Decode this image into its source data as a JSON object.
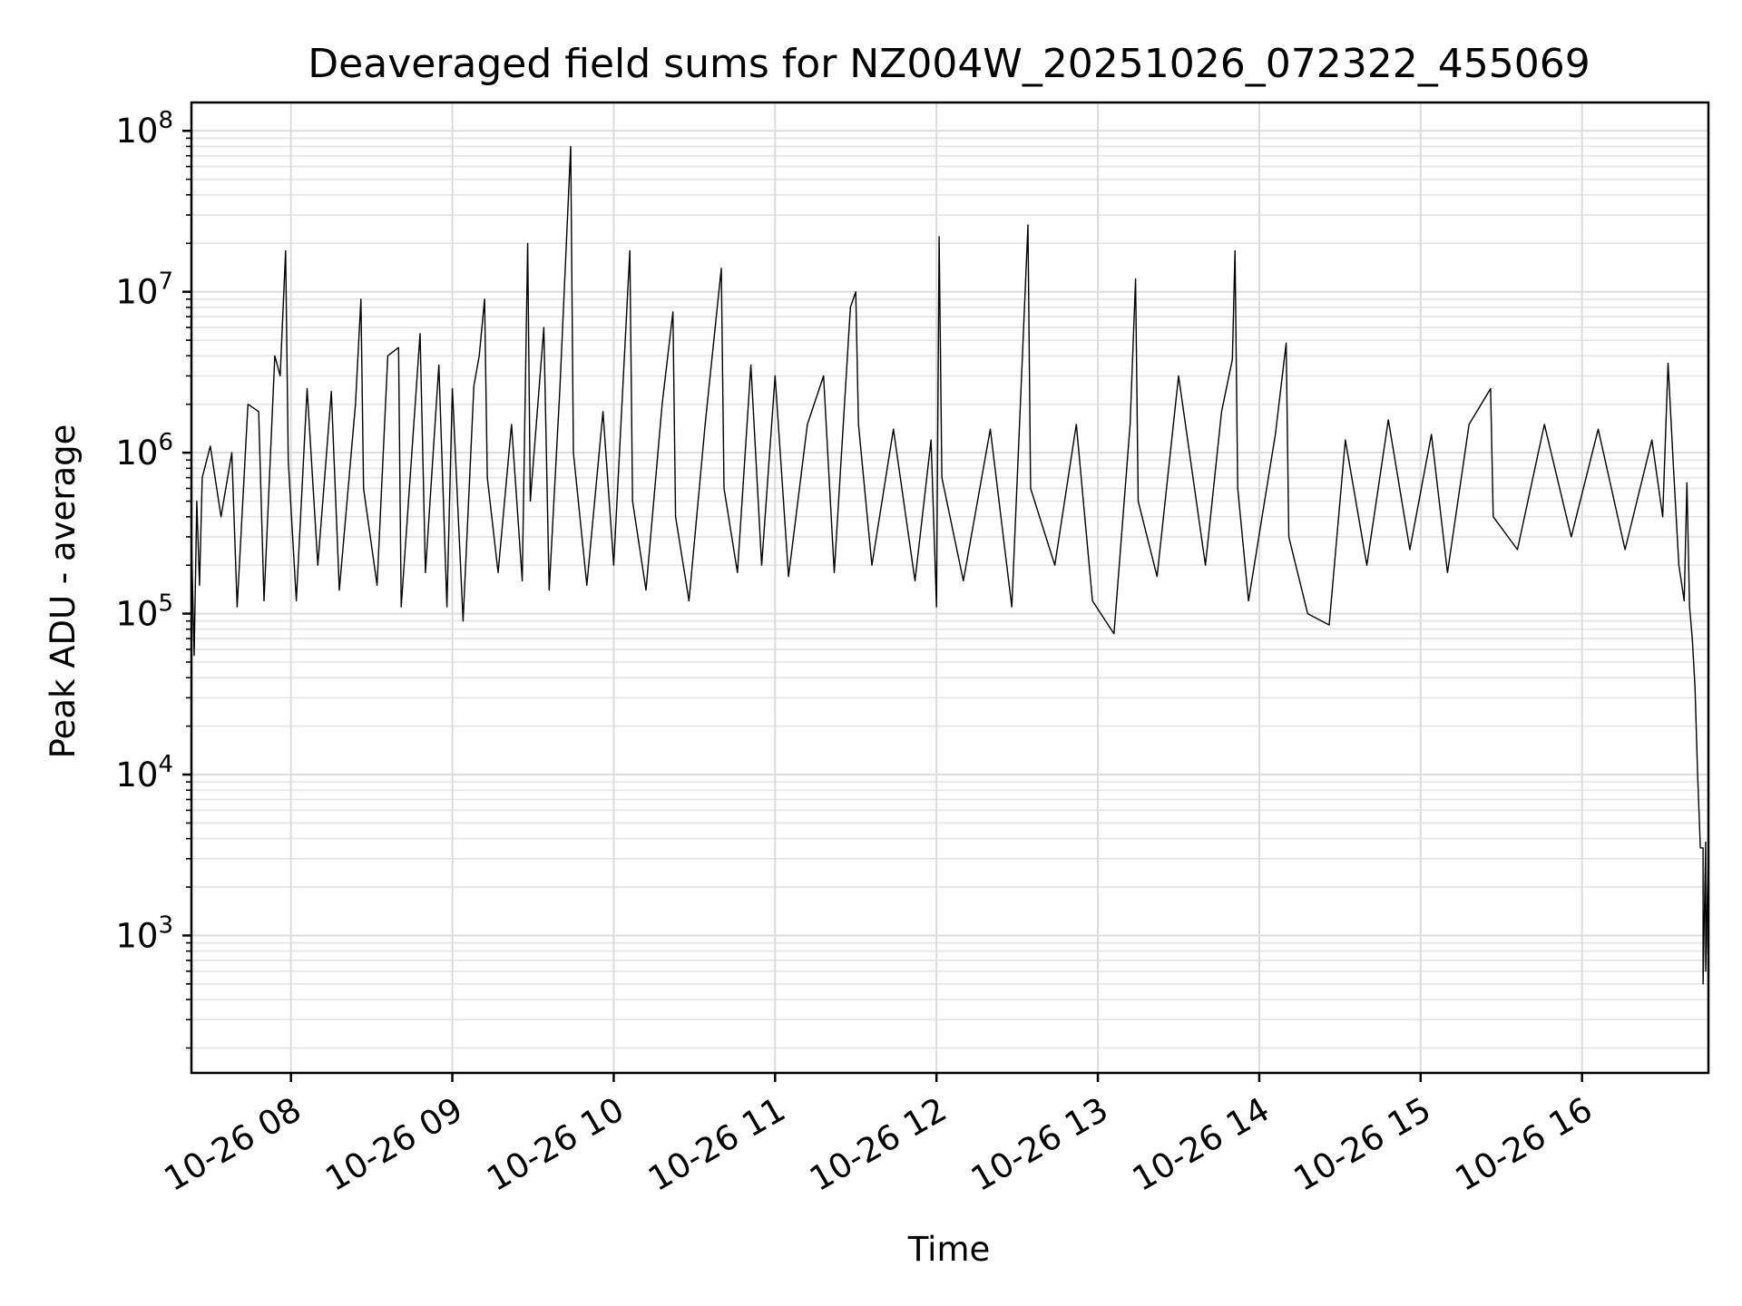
{
  "chart_data": {
    "type": "line",
    "title": "Deaveraged field sums for NZ004W_20251026_072322_455069",
    "xlabel": "Time",
    "ylabel": "Peak ADU - average",
    "yscale": "log",
    "ylim": [
      140,
      150000000
    ],
    "xlim": [
      "2025-10-26 07:23",
      "2025-10-26 16:47"
    ],
    "x_ticks": [
      {
        "value": "2025-10-26 08:00",
        "label": "10-26 08"
      },
      {
        "value": "2025-10-26 09:00",
        "label": "10-26 09"
      },
      {
        "value": "2025-10-26 10:00",
        "label": "10-26 10"
      },
      {
        "value": "2025-10-26 11:00",
        "label": "10-26 11"
      },
      {
        "value": "2025-10-26 12:00",
        "label": "10-26 12"
      },
      {
        "value": "2025-10-26 13:00",
        "label": "10-26 13"
      },
      {
        "value": "2025-10-26 14:00",
        "label": "10-26 14"
      },
      {
        "value": "2025-10-26 15:00",
        "label": "10-26 15"
      },
      {
        "value": "2025-10-26 16:00",
        "label": "10-26 16"
      }
    ],
    "y_ticks": [
      {
        "value": 1000,
        "base": "10",
        "exp": "3"
      },
      {
        "value": 10000,
        "base": "10",
        "exp": "4"
      },
      {
        "value": 100000,
        "base": "10",
        "exp": "5"
      },
      {
        "value": 1000000,
        "base": "10",
        "exp": "6"
      },
      {
        "value": 10000000,
        "base": "10",
        "exp": "7"
      },
      {
        "value": 100000000,
        "base": "10",
        "exp": "8"
      }
    ],
    "grid": true,
    "series": [
      {
        "color": "#000000",
        "points": [
          [
            "2025-10-26 07:23",
            300000
          ],
          [
            "2025-10-26 07:24",
            55000
          ],
          [
            "2025-10-26 07:25",
            500000
          ],
          [
            "2025-10-26 07:26",
            150000
          ],
          [
            "2025-10-26 07:27",
            700000
          ],
          [
            "2025-10-26 07:30",
            1100000
          ],
          [
            "2025-10-26 07:34",
            400000
          ],
          [
            "2025-10-26 07:38",
            1000000
          ],
          [
            "2025-10-26 07:40",
            110000
          ],
          [
            "2025-10-26 07:44",
            2000000
          ],
          [
            "2025-10-26 07:48",
            1800000
          ],
          [
            "2025-10-26 07:50",
            120000
          ],
          [
            "2025-10-26 07:54",
            4000000
          ],
          [
            "2025-10-26 07:56",
            3000000
          ],
          [
            "2025-10-26 07:58",
            18000000
          ],
          [
            "2025-10-26 07:59",
            900000
          ],
          [
            "2025-10-26 08:02",
            120000
          ],
          [
            "2025-10-26 08:06",
            2500000
          ],
          [
            "2025-10-26 08:10",
            200000
          ],
          [
            "2025-10-26 08:15",
            2400000
          ],
          [
            "2025-10-26 08:18",
            140000
          ],
          [
            "2025-10-26 08:24",
            2000000
          ],
          [
            "2025-10-26 08:26",
            9000000
          ],
          [
            "2025-10-26 08:27",
            600000
          ],
          [
            "2025-10-26 08:32",
            150000
          ],
          [
            "2025-10-26 08:36",
            4000000
          ],
          [
            "2025-10-26 08:40",
            4500000
          ],
          [
            "2025-10-26 08:41",
            110000
          ],
          [
            "2025-10-26 08:48",
            5500000
          ],
          [
            "2025-10-26 08:50",
            180000
          ],
          [
            "2025-10-26 08:55",
            3500000
          ],
          [
            "2025-10-26 08:58",
            110000
          ],
          [
            "2025-10-26 09:00",
            2500000
          ],
          [
            "2025-10-26 09:04",
            90000
          ],
          [
            "2025-10-26 09:08",
            2600000
          ],
          [
            "2025-10-26 09:10",
            4000000
          ],
          [
            "2025-10-26 09:12",
            9000000
          ],
          [
            "2025-10-26 09:13",
            700000
          ],
          [
            "2025-10-26 09:17",
            180000
          ],
          [
            "2025-10-26 09:22",
            1500000
          ],
          [
            "2025-10-26 09:26",
            160000
          ],
          [
            "2025-10-26 09:28",
            20000000
          ],
          [
            "2025-10-26 09:29",
            500000
          ],
          [
            "2025-10-26 09:34",
            6000000
          ],
          [
            "2025-10-26 09:36",
            140000
          ],
          [
            "2025-10-26 09:40",
            2500000
          ],
          [
            "2025-10-26 09:44",
            80000000
          ],
          [
            "2025-10-26 09:45",
            1000000
          ],
          [
            "2025-10-26 09:50",
            150000
          ],
          [
            "2025-10-26 09:56",
            1800000
          ],
          [
            "2025-10-26 10:00",
            200000
          ],
          [
            "2025-10-26 10:06",
            18000000
          ],
          [
            "2025-10-26 10:07",
            500000
          ],
          [
            "2025-10-26 10:12",
            140000
          ],
          [
            "2025-10-26 10:18",
            2000000
          ],
          [
            "2025-10-26 10:22",
            7500000
          ],
          [
            "2025-10-26 10:23",
            400000
          ],
          [
            "2025-10-26 10:28",
            120000
          ],
          [
            "2025-10-26 10:34",
            1500000
          ],
          [
            "2025-10-26 10:40",
            14000000
          ],
          [
            "2025-10-26 10:41",
            600000
          ],
          [
            "2025-10-26 10:46",
            180000
          ],
          [
            "2025-10-26 10:51",
            3500000
          ],
          [
            "2025-10-26 10:55",
            200000
          ],
          [
            "2025-10-26 11:00",
            3000000
          ],
          [
            "2025-10-26 11:05",
            170000
          ],
          [
            "2025-10-26 11:12",
            1500000
          ],
          [
            "2025-10-26 11:18",
            3000000
          ],
          [
            "2025-10-26 11:22",
            180000
          ],
          [
            "2025-10-26 11:28",
            8000000
          ],
          [
            "2025-10-26 11:30",
            10000000
          ],
          [
            "2025-10-26 11:31",
            1500000
          ],
          [
            "2025-10-26 11:36",
            200000
          ],
          [
            "2025-10-26 11:44",
            1400000
          ],
          [
            "2025-10-26 11:52",
            160000
          ],
          [
            "2025-10-26 11:58",
            1200000
          ],
          [
            "2025-10-26 12:00",
            110000
          ],
          [
            "2025-10-26 12:01",
            22000000
          ],
          [
            "2025-10-26 12:02",
            700000
          ],
          [
            "2025-10-26 12:10",
            160000
          ],
          [
            "2025-10-26 12:20",
            1400000
          ],
          [
            "2025-10-26 12:28",
            110000
          ],
          [
            "2025-10-26 12:34",
            26000000
          ],
          [
            "2025-10-26 12:35",
            600000
          ],
          [
            "2025-10-26 12:44",
            200000
          ],
          [
            "2025-10-26 12:52",
            1500000
          ],
          [
            "2025-10-26 12:58",
            120000
          ],
          [
            "2025-10-26 13:06",
            75000
          ],
          [
            "2025-10-26 13:12",
            1500000
          ],
          [
            "2025-10-26 13:14",
            12000000
          ],
          [
            "2025-10-26 13:15",
            500000
          ],
          [
            "2025-10-26 13:22",
            170000
          ],
          [
            "2025-10-26 13:30",
            3000000
          ],
          [
            "2025-10-26 13:40",
            200000
          ],
          [
            "2025-10-26 13:46",
            1800000
          ],
          [
            "2025-10-26 13:50",
            3800000
          ],
          [
            "2025-10-26 13:51",
            18000000
          ],
          [
            "2025-10-26 13:52",
            600000
          ],
          [
            "2025-10-26 13:56",
            120000
          ],
          [
            "2025-10-26 14:06",
            1300000
          ],
          [
            "2025-10-26 14:10",
            4800000
          ],
          [
            "2025-10-26 14:11",
            300000
          ],
          [
            "2025-10-26 14:18",
            100000
          ],
          [
            "2025-10-26 14:26",
            85000
          ],
          [
            "2025-10-26 14:32",
            1200000
          ],
          [
            "2025-10-26 14:40",
            200000
          ],
          [
            "2025-10-26 14:48",
            1600000
          ],
          [
            "2025-10-26 14:56",
            250000
          ],
          [
            "2025-10-26 15:04",
            1300000
          ],
          [
            "2025-10-26 15:10",
            180000
          ],
          [
            "2025-10-26 15:18",
            1500000
          ],
          [
            "2025-10-26 15:26",
            2500000
          ],
          [
            "2025-10-26 15:27",
            400000
          ],
          [
            "2025-10-26 15:36",
            250000
          ],
          [
            "2025-10-26 15:46",
            1500000
          ],
          [
            "2025-10-26 15:56",
            300000
          ],
          [
            "2025-10-26 16:06",
            1400000
          ],
          [
            "2025-10-26 16:16",
            250000
          ],
          [
            "2025-10-26 16:26",
            1200000
          ],
          [
            "2025-10-26 16:30",
            400000
          ],
          [
            "2025-10-26 16:32",
            3600000
          ],
          [
            "2025-10-26 16:34",
            800000
          ],
          [
            "2025-10-26 16:36",
            200000
          ],
          [
            "2025-10-26 16:38",
            120000
          ],
          [
            "2025-10-26 16:39",
            650000
          ],
          [
            "2025-10-26 16:40",
            110000
          ],
          [
            "2025-10-26 16:41",
            70000
          ],
          [
            "2025-10-26 16:42",
            35000
          ],
          [
            "2025-10-26 16:43",
            10000
          ],
          [
            "2025-10-26 16:44",
            3500
          ],
          [
            "2025-10-26 16:45",
            3500
          ],
          [
            "2025-10-26 16:45",
            500
          ],
          [
            "2025-10-26 16:46",
            3800
          ],
          [
            "2025-10-26 16:46",
            600
          ],
          [
            "2025-10-26 16:47",
            3500
          ]
        ]
      }
    ]
  }
}
